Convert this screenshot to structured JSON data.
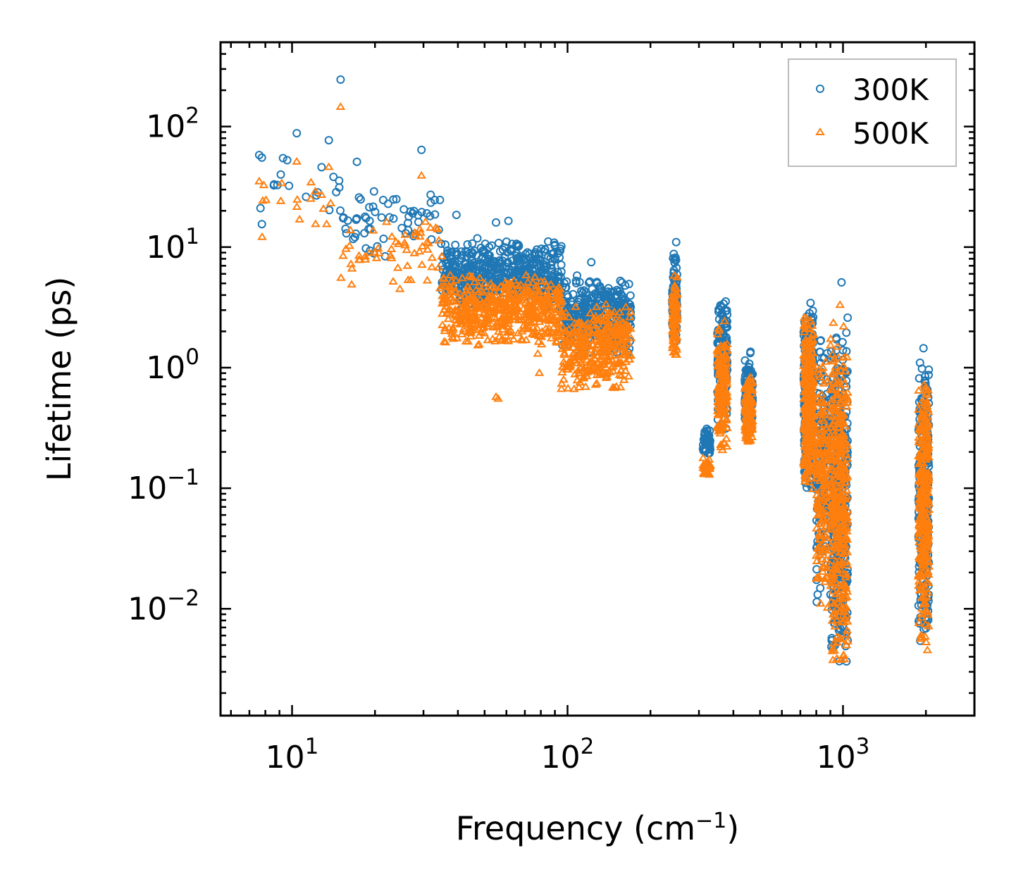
{
  "chart_data": {
    "type": "scatter",
    "xscale": "log",
    "yscale": "log",
    "xlabel": {
      "base": "Frequency (cm",
      "sup": "−1",
      "tail": ")"
    },
    "ylabel": "Lifetime (ps)",
    "xlim": [
      5.5,
      3000
    ],
    "ylim": [
      0.0013,
      500
    ],
    "x_ticks": [
      {
        "value": 10,
        "base": "10",
        "exp": "1"
      },
      {
        "value": 100,
        "base": "10",
        "exp": "2"
      },
      {
        "value": 1000,
        "base": "10",
        "exp": "3"
      }
    ],
    "y_ticks": [
      {
        "value": 100,
        "base": "10",
        "exp": "2"
      },
      {
        "value": 10,
        "base": "10",
        "exp": "1"
      },
      {
        "value": 1,
        "base": "10",
        "exp": "0"
      },
      {
        "value": 0.1,
        "base": "10",
        "exp": "−1"
      },
      {
        "value": 0.01,
        "base": "10",
        "exp": "−2"
      }
    ],
    "legend": {
      "position": "top-right"
    },
    "series": [
      {
        "name": "300K",
        "marker": "circle",
        "color": "#1f77b4",
        "clusters": [
          {
            "x": [
              7.5,
              15
            ],
            "y": [
              15,
              60
            ],
            "n": 18
          },
          {
            "x": [
              15,
              35
            ],
            "y": [
              8,
              35
            ],
            "n": 60
          },
          {
            "x": [
              35,
              95
            ],
            "y": [
              3,
              12
            ],
            "n": 500
          },
          {
            "x": [
              95,
              170
            ],
            "y": [
              1.2,
              6
            ],
            "n": 350
          },
          {
            "x": [
              240,
              250
            ],
            "y": [
              1.3,
              10
            ],
            "n": 90
          },
          {
            "x": [
              310,
              330
            ],
            "y": [
              0.18,
              0.32
            ],
            "n": 50
          },
          {
            "x": [
              350,
              380
            ],
            "y": [
              0.3,
              4.5
            ],
            "n": 150
          },
          {
            "x": [
              440,
              470
            ],
            "y": [
              0.28,
              1.4
            ],
            "n": 120
          },
          {
            "x": [
              720,
              780
            ],
            "y": [
              0.08,
              4
            ],
            "n": 280
          },
          {
            "x": [
              800,
              880
            ],
            "y": [
              0.01,
              2
            ],
            "n": 160
          },
          {
            "x": [
              900,
              1040
            ],
            "y": [
              0.0025,
              2.5
            ],
            "n": 380
          },
          {
            "x": [
              1880,
              2050
            ],
            "y": [
              0.0045,
              1.4
            ],
            "n": 300
          }
        ],
        "points": [
          [
            7.6,
            58
          ],
          [
            9.1,
            40
          ],
          [
            10.4,
            88
          ],
          [
            12.8,
            46
          ],
          [
            13.6,
            77
          ],
          [
            15,
            245
          ],
          [
            17.2,
            51
          ],
          [
            29.5,
            64
          ],
          [
            39.5,
            18.5
          ],
          [
            55,
            16
          ],
          [
            61,
            16.5
          ],
          [
            122,
            7.5
          ],
          [
            128,
            5
          ],
          [
            248,
            11
          ],
          [
            988,
            5.1
          ],
          [
            1040,
            2.6
          ],
          [
            1960,
            1.45
          ]
        ]
      },
      {
        "name": "500K",
        "marker": "triangle",
        "color": "#ff7f0e",
        "clusters": [
          {
            "x": [
              7.5,
              15
            ],
            "y": [
              10,
              40
            ],
            "n": 15
          },
          {
            "x": [
              15,
              35
            ],
            "y": [
              4,
              20
            ],
            "n": 60
          },
          {
            "x": [
              35,
              95
            ],
            "y": [
              1.5,
              6
            ],
            "n": 500
          },
          {
            "x": [
              95,
              170
            ],
            "y": [
              0.6,
              3.5
            ],
            "n": 350
          },
          {
            "x": [
              240,
              250
            ],
            "y": [
              1.2,
              6
            ],
            "n": 90
          },
          {
            "x": [
              310,
              330
            ],
            "y": [
              0.12,
              0.18
            ],
            "n": 40
          },
          {
            "x": [
              350,
              380
            ],
            "y": [
              0.18,
              2.7
            ],
            "n": 150
          },
          {
            "x": [
              440,
              470
            ],
            "y": [
              0.22,
              0.9
            ],
            "n": 120
          },
          {
            "x": [
              720,
              780
            ],
            "y": [
              0.08,
              3
            ],
            "n": 280
          },
          {
            "x": [
              800,
              880
            ],
            "y": [
              0.009,
              1.5
            ],
            "n": 160
          },
          {
            "x": [
              900,
              1040
            ],
            "y": [
              0.0023,
              3
            ],
            "n": 380
          },
          {
            "x": [
              1880,
              2050
            ],
            "y": [
              0.004,
              1
            ],
            "n": 300
          }
        ],
        "points": [
          [
            7.6,
            35
          ],
          [
            9.1,
            24
          ],
          [
            10.4,
            51
          ],
          [
            12.8,
            27
          ],
          [
            13.6,
            46
          ],
          [
            15,
            145
          ],
          [
            29.5,
            39
          ],
          [
            55,
            0.57
          ],
          [
            56,
            0.55
          ],
          [
            78,
            1.3
          ],
          [
            79,
            0.9
          ],
          [
            975,
            3.3
          ]
        ]
      }
    ]
  }
}
